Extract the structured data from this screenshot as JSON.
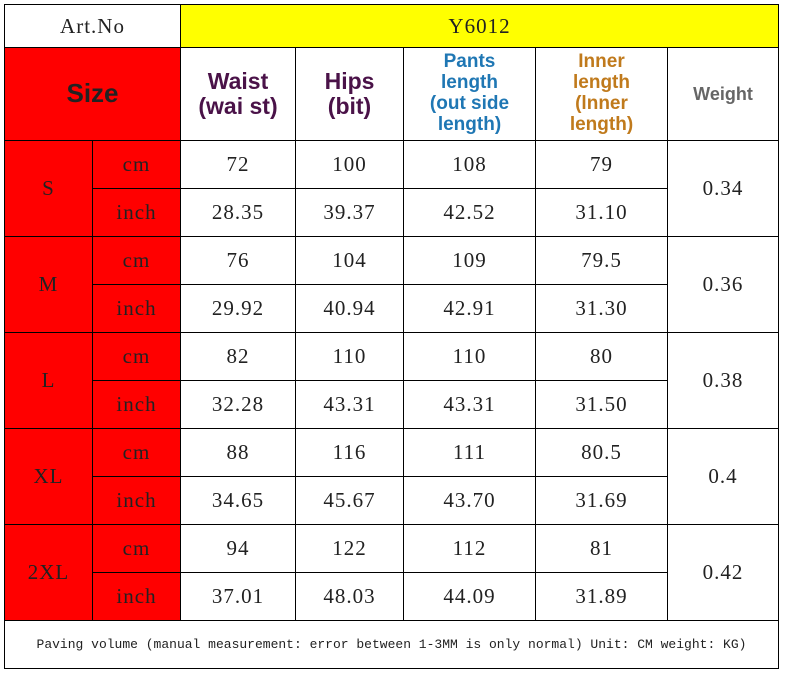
{
  "header": {
    "art_no_label": "Art.No",
    "art_no": "Y6012"
  },
  "table": {
    "size_header": "Size",
    "columns": [
      {
        "lines": [
          "Waist",
          "(wai st)"
        ],
        "color": "#4a1248"
      },
      {
        "lines": [
          "Hips",
          "(bit)"
        ],
        "color": "#4a1248"
      },
      {
        "lines": [
          "Pants",
          "length",
          "(out side",
          "length)"
        ],
        "color": "#1f77b4"
      },
      {
        "lines": [
          "Inner",
          "length",
          "(lnner",
          "length)"
        ],
        "color": "#c07a1c"
      }
    ],
    "weight_header": "Weight",
    "groups": [
      {
        "size": "S",
        "weight": "0.34",
        "rows": [
          {
            "unit": "cm",
            "values": [
              "72",
              "100",
              "108",
              "79"
            ]
          },
          {
            "unit": "inch",
            "values": [
              "28.35",
              "39.37",
              "42.52",
              "31.10"
            ]
          }
        ]
      },
      {
        "size": "M",
        "weight": "0.36",
        "rows": [
          {
            "unit": "cm",
            "values": [
              "76",
              "104",
              "109",
              "79.5"
            ]
          },
          {
            "unit": "inch",
            "values": [
              "29.92",
              "40.94",
              "42.91",
              "31.30"
            ]
          }
        ]
      },
      {
        "size": "L",
        "weight": "0.38",
        "rows": [
          {
            "unit": "cm",
            "values": [
              "82",
              "110",
              "110",
              "80"
            ]
          },
          {
            "unit": "inch",
            "values": [
              "32.28",
              "43.31",
              "43.31",
              "31.50"
            ]
          }
        ]
      },
      {
        "size": "XL",
        "weight": "0.4",
        "rows": [
          {
            "unit": "cm",
            "values": [
              "88",
              "116",
              "111",
              "80.5"
            ]
          },
          {
            "unit": "inch",
            "values": [
              "34.65",
              "45.67",
              "43.70",
              "31.69"
            ]
          }
        ]
      },
      {
        "size": "2XL",
        "weight": "0.42",
        "rows": [
          {
            "unit": "cm",
            "values": [
              "94",
              "122",
              "112",
              "81"
            ]
          },
          {
            "unit": "inch",
            "values": [
              "37.01",
              "48.03",
              "44.09",
              "31.89"
            ]
          }
        ]
      }
    ]
  },
  "footer": "Paving volume (manual measurement: error between 1-3MM is only normal) Unit: CM weight: KG)"
}
